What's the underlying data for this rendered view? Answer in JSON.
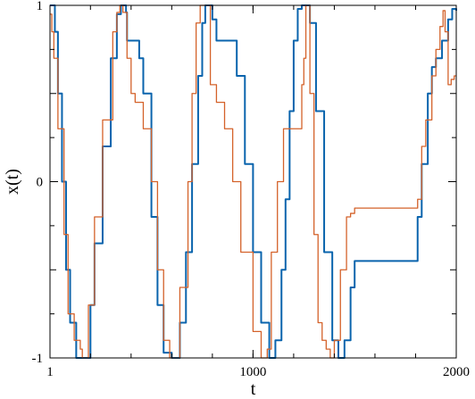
{
  "chart_data": {
    "type": "line",
    "title": "",
    "xlabel": "t",
    "ylabel": "x(t)",
    "xlim": [
      1,
      2000
    ],
    "ylim": [
      -1,
      1
    ],
    "x_ticks": [
      1,
      1000,
      2000
    ],
    "x_tick_labels": [
      "1",
      "1000",
      "2000"
    ],
    "y_ticks": [
      -1,
      0,
      1
    ],
    "y_tick_labels": [
      "-1",
      "0",
      "1"
    ],
    "grid": false,
    "legend": "none",
    "series": [
      {
        "color": "#0a64ad",
        "x": [
          1,
          15,
          25,
          40,
          60,
          80,
          100,
          130,
          160,
          200,
          220,
          260,
          300,
          330,
          350,
          360,
          375,
          380,
          400,
          420,
          440,
          460,
          500,
          530,
          560,
          600,
          640,
          670,
          700,
          730,
          750,
          765,
          780,
          800,
          820,
          840,
          880,
          920,
          960,
          1000,
          1040,
          1080,
          1110,
          1140,
          1160,
          1180,
          1200,
          1220,
          1240,
          1280,
          1310,
          1350,
          1390,
          1420,
          1450,
          1480,
          1500,
          1520,
          1550,
          1600,
          1700,
          1800,
          1810,
          1830,
          1860,
          1880,
          1900,
          1930,
          1960,
          1980,
          2000
        ],
        "y": [
          1,
          1,
          0.85,
          0.5,
          0.0,
          -0.5,
          -0.8,
          -1.0,
          -1.0,
          -0.7,
          -0.35,
          0.2,
          0.7,
          0.95,
          1.0,
          1.0,
          0.96,
          0.8,
          0.8,
          0.8,
          0.7,
          0.5,
          -0.2,
          -0.7,
          -0.97,
          -1.0,
          -0.8,
          -0.4,
          0.1,
          0.6,
          0.9,
          1.0,
          1.0,
          0.92,
          0.8,
          0.8,
          0.8,
          0.6,
          0.1,
          -0.4,
          -0.8,
          -1.0,
          -0.9,
          -0.5,
          -0.1,
          0.4,
          0.8,
          0.98,
          1.0,
          0.9,
          0.4,
          -0.4,
          -0.9,
          -1.0,
          -0.9,
          -0.6,
          -0.45,
          -0.45,
          -0.45,
          -0.45,
          -0.45,
          -0.45,
          -0.2,
          0.1,
          0.5,
          0.65,
          0.7,
          0.8,
          0.92,
          0.98,
          0.97
        ]
      },
      {
        "color": "#d4622a",
        "x": [
          1,
          10,
          20,
          40,
          70,
          90,
          110,
          120,
          130,
          140,
          150,
          160,
          190,
          220,
          260,
          310,
          330,
          345,
          360,
          380,
          400,
          420,
          460,
          500,
          530,
          560,
          590,
          640,
          680,
          700,
          720,
          740,
          770,
          790,
          820,
          860,
          900,
          940,
          1000,
          1040,
          1070,
          1090,
          1120,
          1150,
          1180,
          1200,
          1220,
          1240,
          1250,
          1260,
          1270,
          1280,
          1300,
          1320,
          1340,
          1360,
          1380,
          1400,
          1430,
          1460,
          1480,
          1500,
          1520,
          1550,
          1600,
          1700,
          1800,
          1810,
          1830,
          1850,
          1880,
          1900,
          1920,
          1935,
          1945,
          1960,
          1975,
          1990,
          2000
        ],
        "y": [
          0.95,
          0.85,
          0.7,
          0.3,
          -0.3,
          -0.75,
          -0.75,
          -0.9,
          -0.9,
          -0.9,
          -0.95,
          -1.0,
          -0.7,
          -0.2,
          0.35,
          0.85,
          0.96,
          1.0,
          0.96,
          0.7,
          0.5,
          0.45,
          0.3,
          0.0,
          -0.5,
          -0.9,
          -1.0,
          -0.6,
          0.0,
          0.5,
          0.9,
          1.0,
          1.0,
          0.55,
          0.45,
          0.3,
          0.0,
          -0.4,
          -0.85,
          -1.0,
          -0.95,
          -0.4,
          0.0,
          0.3,
          0.3,
          0.3,
          0.3,
          0.55,
          0.7,
          1.0,
          1.0,
          0.5,
          -0.3,
          -0.8,
          -0.9,
          -0.95,
          -1.0,
          -0.9,
          -0.5,
          -0.2,
          -0.18,
          -0.15,
          -0.15,
          -0.15,
          -0.15,
          -0.15,
          -0.15,
          -0.1,
          0.2,
          0.35,
          0.6,
          0.75,
          0.88,
          0.97,
          0.85,
          0.55,
          0.58,
          0.6,
          0.6
        ]
      }
    ]
  }
}
